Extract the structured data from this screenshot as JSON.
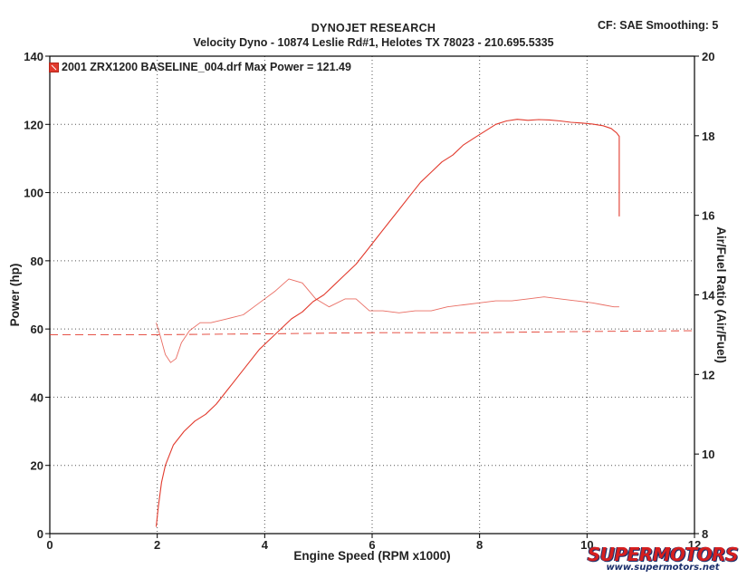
{
  "header": {
    "title": "DYNOJET RESEARCH",
    "subtitle": "Velocity Dyno - 10874 Leslie Rd#1, Helotes TX 78023 - 210.695.5335",
    "settings": "CF: SAE  Smoothing: 5"
  },
  "legend": {
    "entry": "2001 ZRX1200 BASELINE_004.drf Max Power = 121.49"
  },
  "watermark": {
    "brand": "SUPERMOTORS",
    "url": "www.supermotors.net"
  },
  "colors": {
    "series": "#e23b2e",
    "grid": "#555555",
    "frame": "#000000"
  },
  "chart_data": {
    "type": "line",
    "xlabel": "Engine Speed (RPM x1000)",
    "ylabel": "Power (hp)",
    "y2label": "Air/Fuel Ratio (Air/Fuel)",
    "xlim": [
      0,
      12
    ],
    "ylim": [
      0,
      140
    ],
    "y2lim": [
      8,
      20
    ],
    "x_ticks": [
      0,
      2,
      4,
      6,
      8,
      10,
      12
    ],
    "y_ticks": [
      0,
      20,
      40,
      60,
      80,
      100,
      120,
      140
    ],
    "y2_ticks": [
      8,
      10,
      12,
      14,
      16,
      18,
      20
    ],
    "grid": true,
    "legend_position": "top-left",
    "max_power": 121.49,
    "series": [
      {
        "axis": "left",
        "x": [
          1.98,
          2.02,
          2.08,
          2.15,
          2.3,
          2.5,
          2.7,
          2.9,
          3.1,
          3.3,
          3.5,
          3.7,
          3.9,
          4.1,
          4.3,
          4.5,
          4.7,
          4.9,
          5.1,
          5.3,
          5.5,
          5.7,
          5.9,
          6.1,
          6.3,
          6.5,
          6.7,
          6.9,
          7.1,
          7.3,
          7.5,
          7.7,
          7.9,
          8.1,
          8.3,
          8.5,
          8.7,
          8.9,
          9.1,
          9.3,
          9.5,
          9.7,
          9.9,
          10.1,
          10.3,
          10.45,
          10.55,
          10.6,
          10.6
        ],
        "values": [
          2,
          8,
          15,
          20,
          26,
          30,
          33,
          35,
          38,
          42,
          46,
          50,
          54,
          57,
          60,
          63,
          65,
          68,
          70,
          73,
          76,
          79,
          83,
          87,
          91,
          95,
          99,
          103,
          106,
          109,
          111,
          114,
          116,
          118,
          120,
          121,
          121.49,
          121.2,
          121.4,
          121.3,
          121,
          120.6,
          120.4,
          120.1,
          119.6,
          118.8,
          117.5,
          116.5,
          93
        ]
      },
      {
        "axis": "right",
        "x": [
          1.98,
          2.05,
          2.15,
          2.25,
          2.35,
          2.45,
          2.6,
          2.8,
          3.0,
          3.3,
          3.6,
          3.9,
          4.2,
          4.45,
          4.7,
          4.95,
          5.2,
          5.5,
          5.7,
          5.95,
          6.2,
          6.5,
          6.8,
          7.1,
          7.4,
          7.7,
          8.0,
          8.3,
          8.6,
          8.9,
          9.2,
          9.5,
          9.8,
          10.1,
          10.3,
          10.5,
          10.6
        ],
        "values": [
          13.3,
          13.0,
          12.5,
          12.3,
          12.4,
          12.8,
          13.1,
          13.3,
          13.3,
          13.4,
          13.5,
          13.8,
          14.1,
          14.4,
          14.3,
          13.9,
          13.7,
          13.9,
          13.9,
          13.6,
          13.6,
          13.55,
          13.6,
          13.6,
          13.7,
          13.75,
          13.8,
          13.85,
          13.85,
          13.9,
          13.95,
          13.9,
          13.85,
          13.8,
          13.75,
          13.7,
          13.7
        ]
      },
      {
        "axis": "right",
        "style": "dashed",
        "x": [
          0,
          2,
          4,
          6,
          8,
          10,
          12
        ],
        "values": [
          13.0,
          13.0,
          13.02,
          13.05,
          13.05,
          13.08,
          13.1
        ]
      }
    ]
  }
}
